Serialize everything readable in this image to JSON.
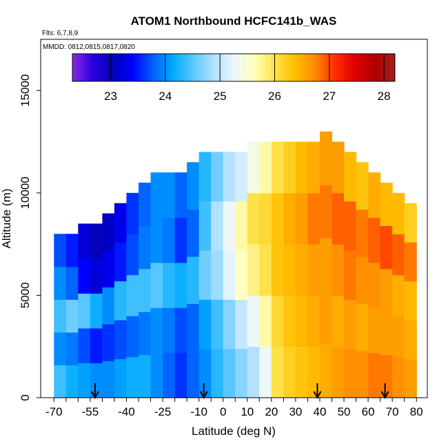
{
  "chart_data": {
    "type": "heatmap",
    "title": "ATOM1 Northbound HCFC141b_WAS",
    "subtitle_flights": "Flts: 6,7,8,9",
    "subtitle_dates": "MMDD: 0812,0815,0817,0820",
    "xlabel": "Latitude (deg N)",
    "ylabel": "Altitude (m)",
    "xlim": [
      -70,
      80
    ],
    "ylim": [
      0,
      17500
    ],
    "x_tick_labels": [
      "-70",
      "-55",
      "-40",
      "-25",
      "-10",
      "0",
      "10",
      "20",
      "30",
      "40",
      "50",
      "60",
      "70",
      "80"
    ],
    "x_ticks": [
      -70,
      -65,
      -60,
      -55,
      -50,
      -45,
      -40,
      -35,
      -30,
      -25,
      -20,
      -15,
      -10,
      -5,
      0,
      5,
      10,
      15,
      20,
      25,
      30,
      35,
      40,
      45,
      50,
      55,
      60,
      65,
      70,
      75,
      80
    ],
    "y_ticks": [
      0,
      5000,
      10000,
      15000
    ],
    "y_tick_labels": [
      "0",
      "5000",
      "10000",
      "15000"
    ],
    "colorbar": {
      "min": 22.3,
      "max": 28.2,
      "ticks": [
        23,
        24,
        25,
        26,
        27,
        28
      ],
      "tick_labels": [
        "23",
        "24",
        "25",
        "26",
        "27",
        "28"
      ],
      "colors": [
        "#8a2be2",
        "#2a00e0",
        "#0000b8",
        "#0000ff",
        "#0060ff",
        "#00aaff",
        "#5cc8ff",
        "#b0e0ff",
        "#eaf6ff",
        "#ffffc0",
        "#ffe24d",
        "#ffc000",
        "#ff8c00",
        "#ff3000",
        "#e00000",
        "#b00000",
        "#a02020"
      ]
    },
    "arrows_latitude": [
      -53,
      -8,
      39,
      67
    ],
    "columns": [
      {
        "lat": -70,
        "top": 8000,
        "v": [
          24.4,
          24.0,
          24.4,
          24.0,
          23.7
        ]
      },
      {
        "lat": -65,
        "top": 8000,
        "v": [
          24.2,
          23.9,
          24.6,
          23.8,
          23.5
        ]
      },
      {
        "lat": -60,
        "top": 8500,
        "v": [
          24.1,
          23.7,
          24.5,
          23.4,
          23.2
        ]
      },
      {
        "lat": -55,
        "top": 8500,
        "v": [
          24.0,
          23.5,
          24.2,
          23.2,
          23.0
        ]
      },
      {
        "lat": -50,
        "top": 9000,
        "v": [
          24.0,
          23.6,
          24.0,
          23.3,
          23.1
        ]
      },
      {
        "lat": -45,
        "top": 9500,
        "v": [
          24.1,
          23.7,
          24.3,
          23.5,
          23.3
        ]
      },
      {
        "lat": -40,
        "top": 10000,
        "v": [
          24.2,
          23.8,
          24.4,
          23.7,
          23.6
        ]
      },
      {
        "lat": -35,
        "top": 10500,
        "v": [
          24.2,
          23.9,
          24.4,
          23.9,
          23.8
        ]
      },
      {
        "lat": -30,
        "top": 11000,
        "v": [
          24.0,
          24.0,
          24.5,
          24.0,
          24.0
        ]
      },
      {
        "lat": -25,
        "top": 11000,
        "v": [
          23.8,
          23.9,
          24.3,
          23.9,
          24.0
        ]
      },
      {
        "lat": -20,
        "top": 11000,
        "v": [
          23.6,
          23.7,
          24.2,
          23.6,
          23.8
        ]
      },
      {
        "lat": -15,
        "top": 11500,
        "v": [
          23.8,
          23.8,
          24.3,
          23.8,
          24.0
        ]
      },
      {
        "lat": -10,
        "top": 12000,
        "v": [
          24.0,
          24.1,
          24.6,
          24.4,
          24.3
        ]
      },
      {
        "lat": -5,
        "top": 12000,
        "v": [
          24.3,
          24.4,
          24.8,
          24.9,
          24.6
        ]
      },
      {
        "lat": 0,
        "top": 12000,
        "v": [
          24.5,
          24.7,
          25.2,
          25.3,
          24.9
        ]
      },
      {
        "lat": 5,
        "top": 12000,
        "v": [
          24.7,
          25.0,
          25.6,
          25.7,
          25.1
        ]
      },
      {
        "lat": 10,
        "top": 12500,
        "v": [
          24.9,
          25.3,
          25.8,
          26.0,
          25.4
        ]
      },
      {
        "lat": 15,
        "top": 12500,
        "v": [
          25.3,
          25.7,
          26.0,
          26.1,
          25.7
        ]
      },
      {
        "lat": 20,
        "top": 12500,
        "v": [
          26.0,
          26.1,
          26.3,
          26.3,
          26.0
        ]
      },
      {
        "lat": 25,
        "top": 12500,
        "v": [
          26.2,
          26.3,
          26.4,
          26.5,
          26.2
        ]
      },
      {
        "lat": 30,
        "top": 12500,
        "v": [
          26.3,
          26.4,
          26.5,
          26.6,
          26.4
        ]
      },
      {
        "lat": 35,
        "top": 12500,
        "v": [
          26.4,
          26.5,
          26.6,
          26.8,
          26.5
        ]
      },
      {
        "lat": 40,
        "top": 13000,
        "v": [
          26.5,
          26.6,
          26.6,
          26.8,
          26.6
        ]
      },
      {
        "lat": 45,
        "top": 12500,
        "v": [
          26.6,
          26.5,
          26.7,
          26.9,
          26.6
        ]
      },
      {
        "lat": 50,
        "top": 12000,
        "v": [
          26.7,
          26.6,
          26.8,
          26.9,
          26.4
        ]
      },
      {
        "lat": 55,
        "top": 11500,
        "v": [
          26.7,
          26.5,
          26.7,
          26.8,
          26.3
        ]
      },
      {
        "lat": 60,
        "top": 11000,
        "v": [
          26.8,
          26.6,
          26.7,
          26.9,
          26.5
        ]
      },
      {
        "lat": 65,
        "top": 10500,
        "v": [
          26.8,
          26.6,
          26.6,
          27.0,
          26.4
        ]
      },
      {
        "lat": 70,
        "top": 10000,
        "v": [
          26.7,
          26.6,
          26.5,
          26.9,
          26.4
        ]
      },
      {
        "lat": 75,
        "top": 9500,
        "v": [
          26.6,
          26.5,
          26.4,
          26.8,
          26.2
        ]
      }
    ]
  }
}
